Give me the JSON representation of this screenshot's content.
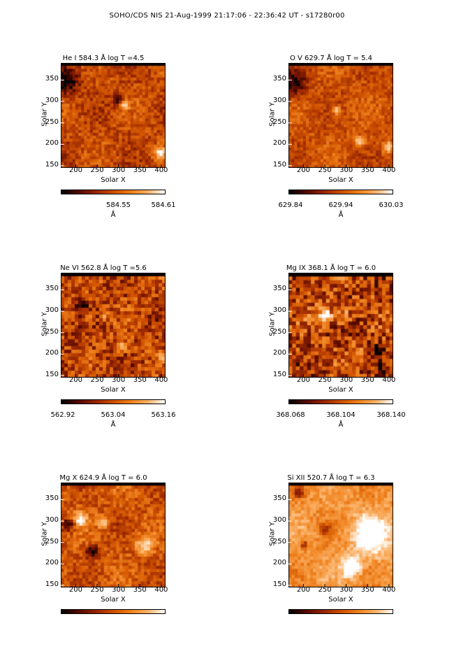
{
  "title": "SOHO/CDS NIS  21-Aug-1999 21:17:06 - 22:36:42 UT - s17280r00",
  "chart_data": [
    {
      "type": "heatmap",
      "title": "He I  584.3 Å log T =4.5",
      "xlabel": "Solar X",
      "ylabel": "Solar Y",
      "xlim": [
        165,
        410
      ],
      "ylim": [
        145,
        390
      ],
      "xticks": [
        "200",
        "250",
        "300",
        "350",
        "400"
      ],
      "yticks": [
        "150",
        "200",
        "250",
        "300",
        "350"
      ],
      "colorbar": {
        "ticks": [
          "584.55",
          "584.61"
        ],
        "tick_fracs": [
          0.55,
          0.98
        ],
        "unit": "Å"
      }
    },
    {
      "type": "heatmap",
      "title": "O V  629.7 Å log T = 5.4",
      "xlabel": "Solar X",
      "ylabel": "Solar Y",
      "xlim": [
        165,
        410
      ],
      "ylim": [
        145,
        390
      ],
      "xticks": [
        "200",
        "250",
        "300",
        "350",
        "400"
      ],
      "yticks": [
        "150",
        "200",
        "250",
        "300",
        "350"
      ],
      "colorbar": {
        "ticks": [
          "629.84",
          "629.94",
          "630.03"
        ],
        "tick_fracs": [
          0.02,
          0.5,
          0.98
        ],
        "unit": "Å"
      }
    },
    {
      "type": "heatmap",
      "title": "Ne VI  562.8 Å log T =5.6",
      "xlabel": "Solar X",
      "ylabel": "Solar Y",
      "xlim": [
        165,
        410
      ],
      "ylim": [
        145,
        390
      ],
      "xticks": [
        "200",
        "250",
        "300",
        "350",
        "400"
      ],
      "yticks": [
        "150",
        "200",
        "250",
        "300",
        "350"
      ],
      "colorbar": {
        "ticks": [
          "562.92",
          "563.04",
          "563.16"
        ],
        "tick_fracs": [
          0.02,
          0.5,
          0.98
        ],
        "unit": "Å"
      }
    },
    {
      "type": "heatmap",
      "title": "Mg IX  368.1 Å log T = 6.0",
      "xlabel": "Solar X",
      "ylabel": "Solar Y",
      "xlim": [
        165,
        410
      ],
      "ylim": [
        145,
        390
      ],
      "xticks": [
        "200",
        "250",
        "300",
        "350",
        "400"
      ],
      "yticks": [
        "150",
        "200",
        "250",
        "300",
        "350"
      ],
      "colorbar": {
        "ticks": [
          "368.068",
          "368.104",
          "368.140"
        ],
        "tick_fracs": [
          0.02,
          0.5,
          0.98
        ],
        "unit": "Å"
      }
    },
    {
      "type": "heatmap",
      "title": "Mg X  624.9 Å log T = 6.0",
      "xlabel": "Solar X",
      "ylabel": "Solar Y",
      "xlim": [
        165,
        410
      ],
      "ylim": [
        145,
        390
      ],
      "xticks": [
        "200",
        "250",
        "300",
        "350",
        "400"
      ],
      "yticks": [
        "150",
        "200",
        "250",
        "300",
        "350"
      ],
      "colorbar": {
        "ticks": [],
        "tick_fracs": [],
        "unit": ""
      }
    },
    {
      "type": "heatmap",
      "title": "Si XII  520.7 Å log T = 6.3",
      "xlabel": "Solar X",
      "ylabel": "Solar Y",
      "xlim": [
        165,
        410
      ],
      "ylim": [
        145,
        390
      ],
      "xticks": [
        "200",
        "250",
        "300",
        "350",
        "400"
      ],
      "yticks": [
        "150",
        "200",
        "250",
        "300",
        "350"
      ],
      "colorbar": {
        "ticks": [],
        "tick_fracs": [],
        "unit": ""
      }
    }
  ],
  "colormap": [
    "#000000",
    "#5a0a00",
    "#9e2a00",
    "#d25500",
    "#f08420",
    "#fbb36a",
    "#ffffff"
  ]
}
